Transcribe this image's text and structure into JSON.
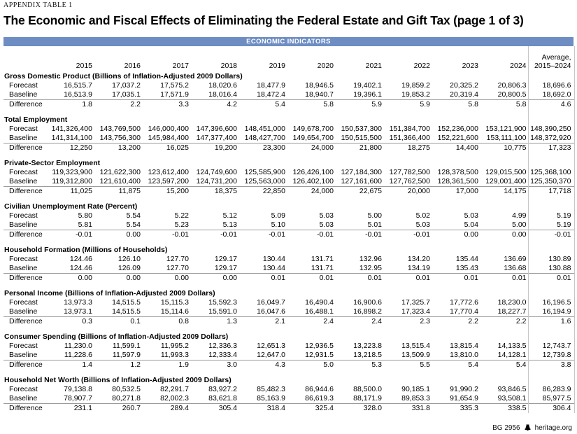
{
  "page": {
    "eyebrow": "APPENDIX TABLE 1",
    "title": "The Economic and Fiscal Effects of Eliminating the Federal Estate and Gift Tax (page 1 of 3)"
  },
  "band": {
    "label": "ECONOMIC INDICATORS",
    "color": "#6d8dc3"
  },
  "table": {
    "years": [
      "2015",
      "2016",
      "2017",
      "2018",
      "2019",
      "2020",
      "2021",
      "2022",
      "2023",
      "2024"
    ],
    "average_header": {
      "line1": "Average,",
      "line2": "2015–2024"
    },
    "row_labels": {
      "forecast": "Forecast",
      "baseline": "Baseline",
      "difference": "Difference"
    },
    "sections": [
      {
        "title": "Gross Domestic Product (Billions of Inflation-Adjusted 2009 Dollars)",
        "forecast": [
          "16,515.7",
          "17,037.2",
          "17,575.2",
          "18,020.6",
          "18,477.9",
          "18,946.5",
          "19,402.1",
          "19,859.2",
          "20,325.2",
          "20,806.3",
          "18,696.6"
        ],
        "baseline": [
          "16,513.9",
          "17,035.1",
          "17,571.9",
          "18,016.4",
          "18,472.4",
          "18,940.7",
          "19,396.1",
          "19,853.2",
          "20,319.4",
          "20,800.5",
          "18,692.0"
        ],
        "difference": [
          "1.8",
          "2.2",
          "3.3",
          "4.2",
          "5.4",
          "5.8",
          "5.9",
          "5.9",
          "5.8",
          "5.8",
          "4.6"
        ]
      },
      {
        "title": "Total Employment",
        "forecast": [
          "141,326,400",
          "143,769,500",
          "146,000,400",
          "147,396,600",
          "148,451,000",
          "149,678,700",
          "150,537,300",
          "151,384,700",
          "152,236,000",
          "153,121,900",
          "148,390,250"
        ],
        "baseline": [
          "141,314,100",
          "143,756,300",
          "145,984,400",
          "147,377,400",
          "148,427,700",
          "149,654,700",
          "150,515,500",
          "151,366,400",
          "152,221,600",
          "153,111,100",
          "148,372,920"
        ],
        "difference": [
          "12,250",
          "13,200",
          "16,025",
          "19,200",
          "23,300",
          "24,000",
          "21,800",
          "18,275",
          "14,400",
          "10,775",
          "17,323"
        ]
      },
      {
        "title": "Private-Sector Employment",
        "forecast": [
          "119,323,900",
          "121,622,300",
          "123,612,400",
          "124,749,600",
          "125,585,900",
          "126,426,100",
          "127,184,300",
          "127,782,500",
          "128,378,500",
          "129,015,500",
          "125,368,100"
        ],
        "baseline": [
          "119,312,800",
          "121,610,400",
          "123,597,200",
          "124,731,200",
          "125,563,000",
          "126,402,100",
          "127,161,600",
          "127,762,500",
          "128,361,500",
          "129,001,400",
          "125,350,370"
        ],
        "difference": [
          "11,025",
          "11,875",
          "15,200",
          "18,375",
          "22,850",
          "24,000",
          "22,675",
          "20,000",
          "17,000",
          "14,175",
          "17,718"
        ]
      },
      {
        "title": "Civilian Unemployment Rate (Percent)",
        "forecast": [
          "5.80",
          "5.54",
          "5.22",
          "5.12",
          "5.09",
          "5.03",
          "5.00",
          "5.02",
          "5.03",
          "4.99",
          "5.19"
        ],
        "baseline": [
          "5.81",
          "5.54",
          "5.23",
          "5.13",
          "5.10",
          "5.03",
          "5.01",
          "5.03",
          "5.04",
          "5.00",
          "5.19"
        ],
        "difference": [
          "-0.01",
          "0.00",
          "-0.01",
          "-0.01",
          "-0.01",
          "-0.01",
          "-0.01",
          "-0.01",
          "0.00",
          "0.00",
          "-0.01"
        ]
      },
      {
        "title": "Household Formation (Millions of Households)",
        "forecast": [
          "124.46",
          "126.10",
          "127.70",
          "129.17",
          "130.44",
          "131.71",
          "132.96",
          "134.20",
          "135.44",
          "136.69",
          "130.89"
        ],
        "baseline": [
          "124.46",
          "126.09",
          "127.70",
          "129.17",
          "130.44",
          "131.71",
          "132.95",
          "134.19",
          "135.43",
          "136.68",
          "130.88"
        ],
        "difference": [
          "0.00",
          "0.00",
          "0.00",
          "0.00",
          "0.01",
          "0.01",
          "0.01",
          "0.01",
          "0.01",
          "0.01",
          "0.01"
        ]
      },
      {
        "title": "Personal Income (Billions of Inflation-Adjusted 2009 Dollars)",
        "forecast": [
          "13,973.3",
          "14,515.5",
          "15,115.3",
          "15,592.3",
          "16,049.7",
          "16,490.4",
          "16,900.6",
          "17,325.7",
          "17,772.6",
          "18,230.0",
          "16,196.5"
        ],
        "baseline": [
          "13,973.1",
          "14,515.5",
          "15,114.6",
          "15,591.0",
          "16,047.6",
          "16,488.1",
          "16,898.2",
          "17,323.4",
          "17,770.4",
          "18,227.7",
          "16,194.9"
        ],
        "difference": [
          "0.3",
          "0.1",
          "0.8",
          "1.3",
          "2.1",
          "2.4",
          "2.4",
          "2.3",
          "2.2",
          "2.2",
          "1.6"
        ]
      },
      {
        "title": "Consumer Spending (Billions of Inflation-Adjusted 2009 Dollars)",
        "forecast": [
          "11,230.0",
          "11,599.1",
          "11,995.2",
          "12,336.3",
          "12,651.3",
          "12,936.5",
          "13,223.8",
          "13,515.4",
          "13,815.4",
          "14,133.5",
          "12,743.7"
        ],
        "baseline": [
          "11,228.6",
          "11,597.9",
          "11,993.3",
          "12,333.4",
          "12,647.0",
          "12,931.5",
          "13,218.5",
          "13,509.9",
          "13,810.0",
          "14,128.1",
          "12,739.8"
        ],
        "difference": [
          "1.4",
          "1.2",
          "1.9",
          "3.0",
          "4.3",
          "5.0",
          "5.3",
          "5.5",
          "5.4",
          "5.4",
          "3.8"
        ]
      },
      {
        "title": "Household Net Worth (Billions of Inflation-Adjusted 2009 Dollars)",
        "forecast": [
          "79,138.8",
          "80,532.5",
          "82,291.7",
          "83,927.2",
          "85,482.3",
          "86,944.6",
          "88,500.0",
          "90,185.1",
          "91,990.2",
          "93,846.5",
          "86,283.9"
        ],
        "baseline": [
          "78,907.7",
          "80,271.8",
          "82,002.3",
          "83,621.8",
          "85,163.9",
          "86,619.3",
          "88,171.9",
          "89,853.3",
          "91,654.9",
          "93,508.1",
          "85,977.5"
        ],
        "difference": [
          "231.1",
          "260.7",
          "289.4",
          "305.4",
          "318.4",
          "325.4",
          "328.0",
          "331.8",
          "335.3",
          "338.5",
          "306.4"
        ]
      }
    ]
  },
  "footer": {
    "doc_id": "BG 2956",
    "logo_icon": "heritage-bell-icon",
    "site": "heritage.org"
  }
}
